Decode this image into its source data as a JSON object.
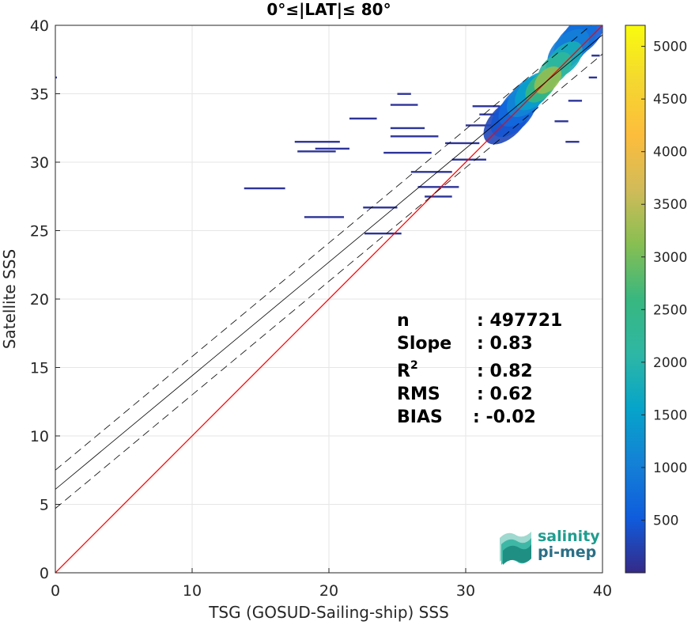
{
  "chart_data": {
    "type": "heatmap",
    "title": "0°≤|LAT|≤ 80°",
    "xlabel": "TSG (GOSUD-Sailing-ship) SSS",
    "ylabel": "Satellite SSS",
    "xlim": [
      0,
      40
    ],
    "ylim": [
      0,
      40
    ],
    "xticks": [
      0,
      10,
      20,
      30,
      40
    ],
    "yticks": [
      0,
      5,
      10,
      15,
      20,
      25,
      30,
      35,
      40
    ],
    "grid": true,
    "colorbar": {
      "colormap": "parula",
      "range": [
        0,
        5200
      ],
      "ticks": [
        500,
        1000,
        1500,
        2000,
        2500,
        3000,
        3500,
        4000,
        4500,
        5000
      ]
    },
    "lines": [
      {
        "name": "identity",
        "color": "#ff0000",
        "slope": 1.0,
        "intercept": 0.0,
        "style": "solid"
      },
      {
        "name": "regression",
        "color": "#000000",
        "slope": 0.83,
        "intercept": 6.1,
        "style": "solid"
      },
      {
        "name": "regression-upper",
        "color": "#000000",
        "slope": 0.83,
        "intercept": 7.5,
        "style": "dashed"
      },
      {
        "name": "regression-lower",
        "color": "#000000",
        "slope": 0.83,
        "intercept": 4.7,
        "style": "dashed"
      }
    ],
    "density_cells": [
      {
        "x": 36,
        "y": 36,
        "count": 3200
      },
      {
        "x": 35.5,
        "y": 35.5,
        "count": 2600
      },
      {
        "x": 36.5,
        "y": 36.8,
        "count": 2200
      },
      {
        "x": 37.2,
        "y": 37.5,
        "count": 1800
      },
      {
        "x": 35,
        "y": 35.2,
        "count": 1500
      },
      {
        "x": 34.5,
        "y": 34.8,
        "count": 1100
      },
      {
        "x": 37.5,
        "y": 38.2,
        "count": 1000
      },
      {
        "x": 38,
        "y": 38.8,
        "count": 800
      },
      {
        "x": 34,
        "y": 34.2,
        "count": 700
      },
      {
        "x": 33.5,
        "y": 33.5,
        "count": 450
      },
      {
        "x": 33,
        "y": 33,
        "count": 300
      },
      {
        "x": 38.5,
        "y": 39.3,
        "count": 500
      }
    ],
    "scatter_segments": [
      {
        "x1": 13.8,
        "x2": 16.8,
        "y": 28.1
      },
      {
        "x1": 18.2,
        "x2": 21.1,
        "y": 26.0
      },
      {
        "x1": 22.5,
        "x2": 25.0,
        "y": 26.7
      },
      {
        "x1": 22.6,
        "x2": 25.3,
        "y": 24.8
      },
      {
        "x1": 17.7,
        "x2": 20.5,
        "y": 30.8
      },
      {
        "x1": 17.5,
        "x2": 20.8,
        "y": 31.5
      },
      {
        "x1": 19.0,
        "x2": 21.5,
        "y": 31.0
      },
      {
        "x1": 24.5,
        "x2": 28.0,
        "y": 31.9
      },
      {
        "x1": 24.0,
        "x2": 27.5,
        "y": 30.7
      },
      {
        "x1": 26.0,
        "x2": 29.0,
        "y": 29.3
      },
      {
        "x1": 26.5,
        "x2": 29.5,
        "y": 28.2
      },
      {
        "x1": 27.0,
        "x2": 29.0,
        "y": 27.5
      },
      {
        "x1": 21.5,
        "x2": 23.5,
        "y": 33.2
      },
      {
        "x1": 24.5,
        "x2": 27.0,
        "y": 32.5
      },
      {
        "x1": 29.0,
        "x2": 31.5,
        "y": 30.2
      },
      {
        "x1": 28.5,
        "x2": 31.0,
        "y": 31.4
      },
      {
        "x1": 30.0,
        "x2": 32.0,
        "y": 32.7
      },
      {
        "x1": 30.5,
        "x2": 32.5,
        "y": 34.1
      },
      {
        "x1": 31.0,
        "x2": 33.0,
        "y": 33.5
      },
      {
        "x1": 24.5,
        "x2": 26.5,
        "y": 34.2
      },
      {
        "x1": 36.5,
        "x2": 37.5,
        "y": 33.0
      },
      {
        "x1": 37.5,
        "x2": 38.5,
        "y": 34.5
      },
      {
        "x1": 39.0,
        "x2": 39.6,
        "y": 36.2
      },
      {
        "x1": 39.2,
        "x2": 39.8,
        "y": 37.8
      },
      {
        "x1": 37.3,
        "x2": 38.3,
        "y": 31.5
      },
      {
        "x1": 0.0,
        "x2": 0.1,
        "y": 36.2
      },
      {
        "x1": 25.0,
        "x2": 26.0,
        "y": 35.0
      }
    ],
    "annotation": {
      "rows": [
        {
          "label": "n",
          "value": ": 497721"
        },
        {
          "label": "Slope",
          "value": ": 0.83"
        },
        {
          "label": "R",
          "superscript": "2",
          "value": ": 0.82"
        },
        {
          "label": "RMS",
          "value": ": 0.62"
        },
        {
          "label": "BIAS",
          "value": ": -0.02"
        }
      ]
    },
    "logo": {
      "line1": "salinity",
      "line2": "pi-mep"
    }
  }
}
